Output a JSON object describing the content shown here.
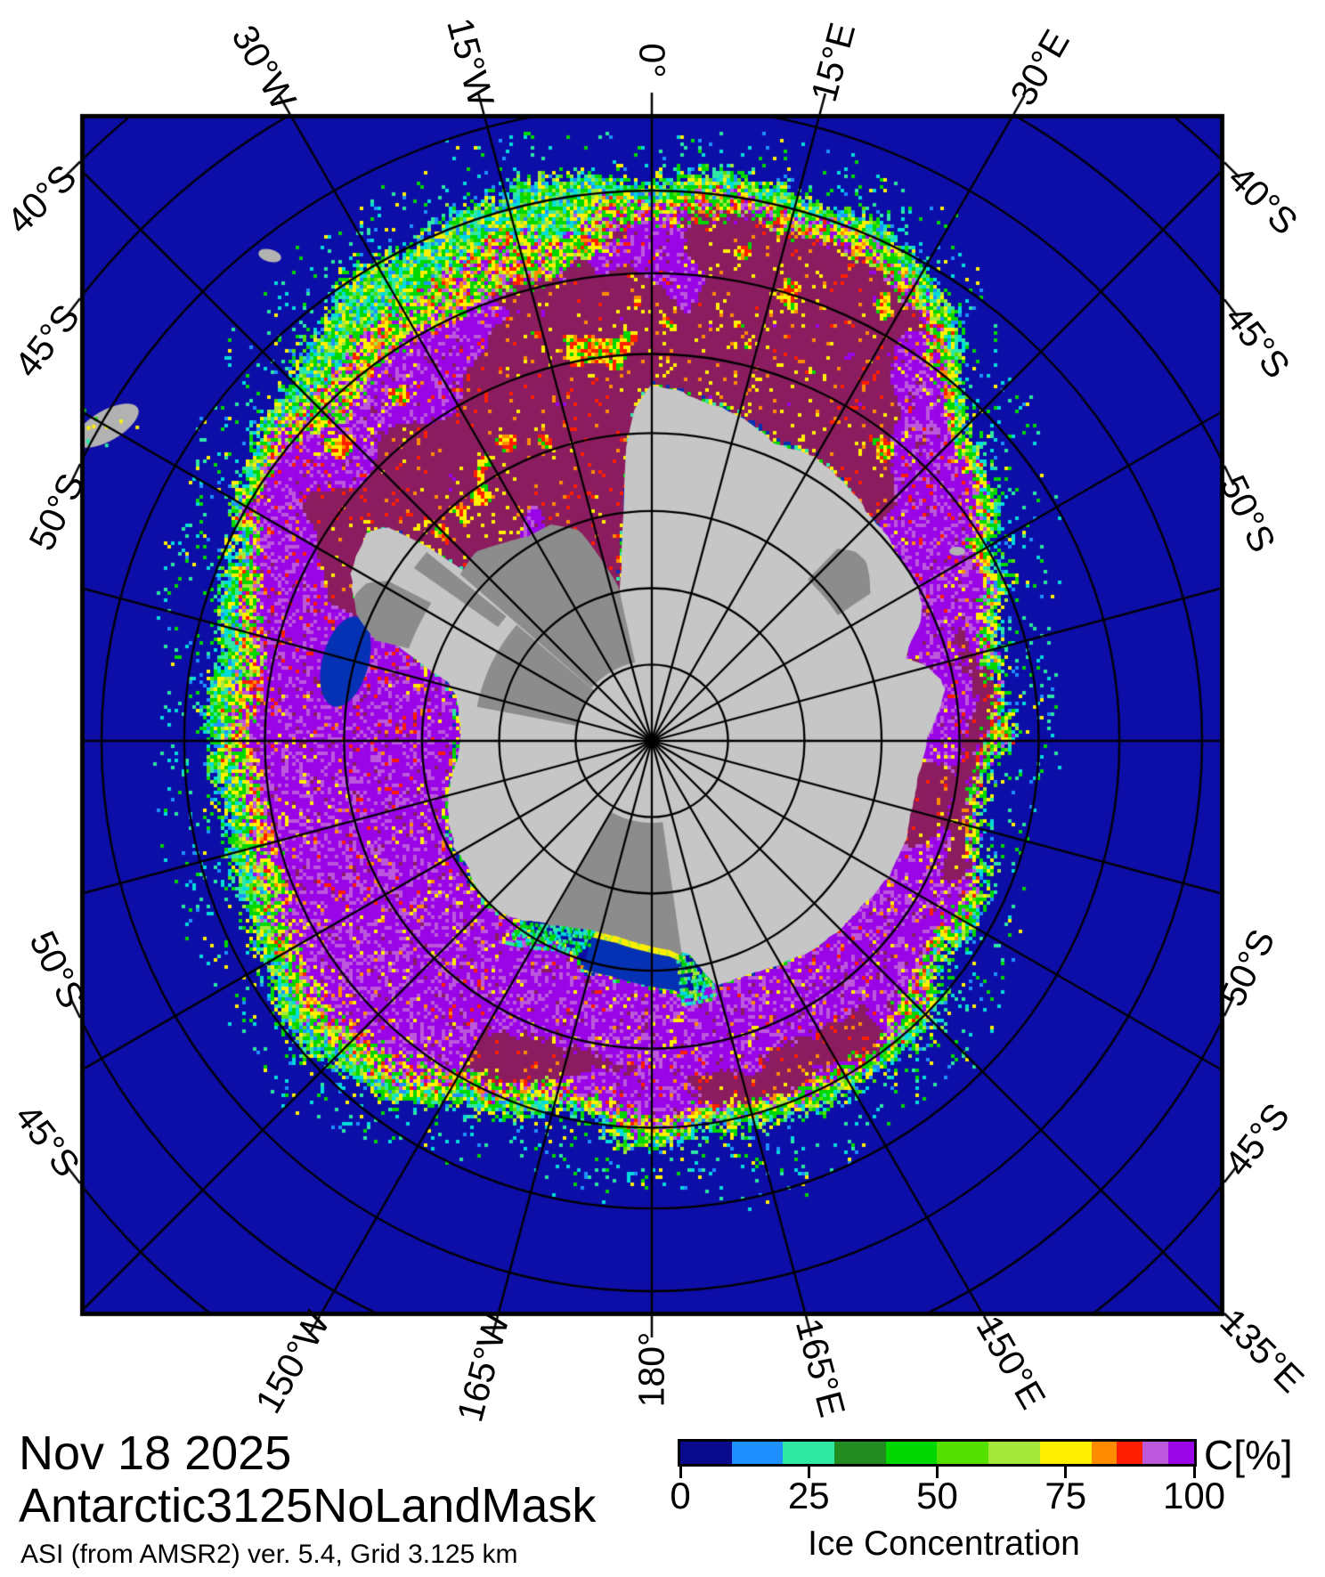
{
  "caption": {
    "date": "Nov 18 2025",
    "product": "Antarctic3125NoLandMask",
    "source": "ASI (from AMSR2) ver. 5.4,  Grid 3.125 km"
  },
  "colorbar": {
    "unit": "C[%]",
    "title": "Ice Concentration",
    "tick_labels": [
      "0",
      "25",
      "50",
      "75",
      "100"
    ],
    "tick_values": [
      0,
      25,
      50,
      75,
      100
    ],
    "segments": [
      {
        "from": 0,
        "to": 10,
        "color": "#0a0a8c"
      },
      {
        "from": 10,
        "to": 20,
        "color": "#1e90ff"
      },
      {
        "from": 20,
        "to": 30,
        "color": "#2ee8a4"
      },
      {
        "from": 30,
        "to": 40,
        "color": "#228b22"
      },
      {
        "from": 40,
        "to": 50,
        "color": "#00d800"
      },
      {
        "from": 50,
        "to": 60,
        "color": "#55e000"
      },
      {
        "from": 60,
        "to": 70,
        "color": "#a4e83c"
      },
      {
        "from": 70,
        "to": 80,
        "color": "#fff000"
      },
      {
        "from": 80,
        "to": 85,
        "color": "#ff8c00"
      },
      {
        "from": 85,
        "to": 90,
        "color": "#ff1e00"
      },
      {
        "from": 90,
        "to": 95,
        "color": "#bc58dc"
      },
      {
        "from": 95,
        "to": 100,
        "color": "#9a05e8"
      }
    ]
  },
  "map": {
    "axis_labels": {
      "top": [
        {
          "text": "30°W",
          "lon": -30
        },
        {
          "text": "15°W",
          "lon": -15
        },
        {
          "text": "0°",
          "lon": 0
        },
        {
          "text": "15°E",
          "lon": 15
        },
        {
          "text": "30°E",
          "lon": 30
        }
      ],
      "bottom": [
        {
          "text": "150°W",
          "lon": -150
        },
        {
          "text": "165°W",
          "lon": -165
        },
        {
          "text": "180°",
          "lon": 180
        },
        {
          "text": "165°E",
          "lon": 165
        },
        {
          "text": "150°E",
          "lon": 150
        },
        {
          "text": "135°E",
          "lon": 135
        }
      ],
      "left_upper": [
        {
          "text": "40°S",
          "lat": 40
        },
        {
          "text": "45°S",
          "lat": 45
        },
        {
          "text": "50°S",
          "lat": 50
        }
      ],
      "left_lower": [
        {
          "text": "50°S",
          "lat": 50
        },
        {
          "text": "45°S",
          "lat": 45
        }
      ],
      "right_upper": [
        {
          "text": "40°S",
          "lat": 40
        },
        {
          "text": "45°S",
          "lat": 45
        },
        {
          "text": "50°S",
          "lat": 50
        }
      ],
      "right_lower": [
        {
          "text": "50°S",
          "lat": 50
        },
        {
          "text": "45°S",
          "lat": 45
        }
      ]
    },
    "graticule": {
      "parallels_deg_south": [
        40,
        45,
        50,
        55,
        60,
        65,
        70,
        75,
        80,
        85
      ],
      "meridian_step_deg": 15
    }
  },
  "palette": {
    "ocean": "#0d0da8",
    "polynya_navy": "#0531b4",
    "navy": "#0a0a8c",
    "dodger": "#1e90ff",
    "spring": "#2ee8a4",
    "forest": "#228b22",
    "green": "#00d800",
    "lawn": "#55e000",
    "light_yg": "#a4e83c",
    "yellow": "#fff000",
    "orange": "#ff8c00",
    "red": "#ff1e00",
    "orchid": "#bc58dc",
    "purple": "#9a05e8",
    "maroon": "#8b1c5f",
    "cyan": "#00dcdc",
    "continent": "#c6c6c6",
    "ice_shelf": "#8c8c8c",
    "island": "#b2b2b2",
    "grid": "#000000",
    "frame": "#000000"
  }
}
